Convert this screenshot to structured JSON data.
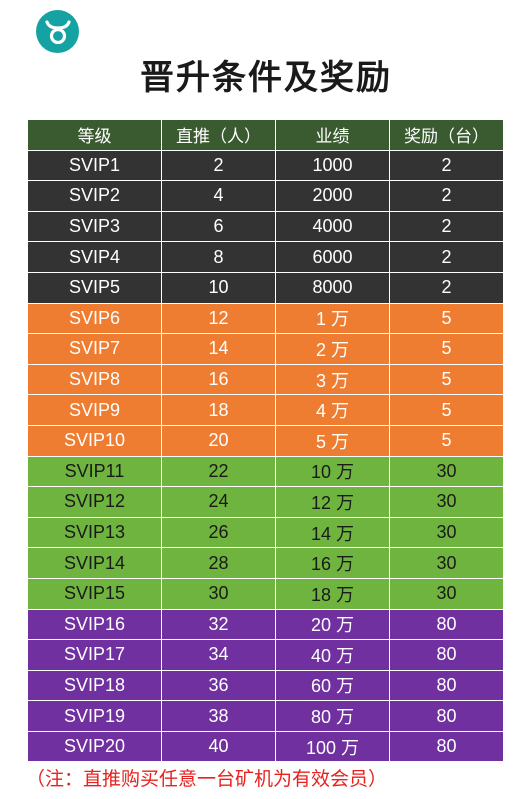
{
  "title": "晋升条件及奖励",
  "logo": {
    "icon": "taurus-logo-icon",
    "color": "#15a2a2"
  },
  "table": {
    "headers": [
      "等级",
      "直推（人）",
      "业绩",
      "奖励（台）"
    ],
    "tier_colors": {
      "gray": "#333333",
      "orange": "#ef7d31",
      "green": "#6fb43f",
      "purple": "#7030a0",
      "header": "#3a5a2f"
    },
    "rows": [
      {
        "tier": "gray",
        "cells": [
          "SVIP1",
          "2",
          "1000",
          "2"
        ]
      },
      {
        "tier": "gray",
        "cells": [
          "SVIP2",
          "4",
          "2000",
          "2"
        ]
      },
      {
        "tier": "gray",
        "cells": [
          "SVIP3",
          "6",
          "4000",
          "2"
        ]
      },
      {
        "tier": "gray",
        "cells": [
          "SVIP4",
          "8",
          "6000",
          "2"
        ]
      },
      {
        "tier": "gray",
        "cells": [
          "SVIP5",
          "10",
          "8000",
          "2"
        ]
      },
      {
        "tier": "orange",
        "cells": [
          "SVIP6",
          "12",
          "1 万",
          "5"
        ]
      },
      {
        "tier": "orange",
        "cells": [
          "SVIP7",
          "14",
          "2 万",
          "5"
        ]
      },
      {
        "tier": "orange",
        "cells": [
          "SVIP8",
          "16",
          "3 万",
          "5"
        ]
      },
      {
        "tier": "orange",
        "cells": [
          "SVIP9",
          "18",
          "4 万",
          "5"
        ]
      },
      {
        "tier": "orange",
        "cells": [
          "SVIP10",
          "20",
          "5 万",
          "5"
        ]
      },
      {
        "tier": "green",
        "cells": [
          "SVIP11",
          "22",
          "10 万",
          "30"
        ]
      },
      {
        "tier": "green",
        "cells": [
          "SVIP12",
          "24",
          "12 万",
          "30"
        ]
      },
      {
        "tier": "green",
        "cells": [
          "SVIP13",
          "26",
          "14 万",
          "30"
        ]
      },
      {
        "tier": "green",
        "cells": [
          "SVIP14",
          "28",
          "16 万",
          "30"
        ]
      },
      {
        "tier": "green",
        "cells": [
          "SVIP15",
          "30",
          "18 万",
          "30"
        ]
      },
      {
        "tier": "purple",
        "cells": [
          "SVIP16",
          "32",
          "20 万",
          "80"
        ]
      },
      {
        "tier": "purple",
        "cells": [
          "SVIP17",
          "34",
          "40 万",
          "80"
        ]
      },
      {
        "tier": "purple",
        "cells": [
          "SVIP18",
          "36",
          "60 万",
          "80"
        ]
      },
      {
        "tier": "purple",
        "cells": [
          "SVIP19",
          "38",
          "80 万",
          "80"
        ]
      },
      {
        "tier": "purple",
        "cells": [
          "SVIP20",
          "40",
          "100 万",
          "80"
        ]
      }
    ]
  },
  "note": "（注：直推购买任意一台矿机为有效会员）"
}
